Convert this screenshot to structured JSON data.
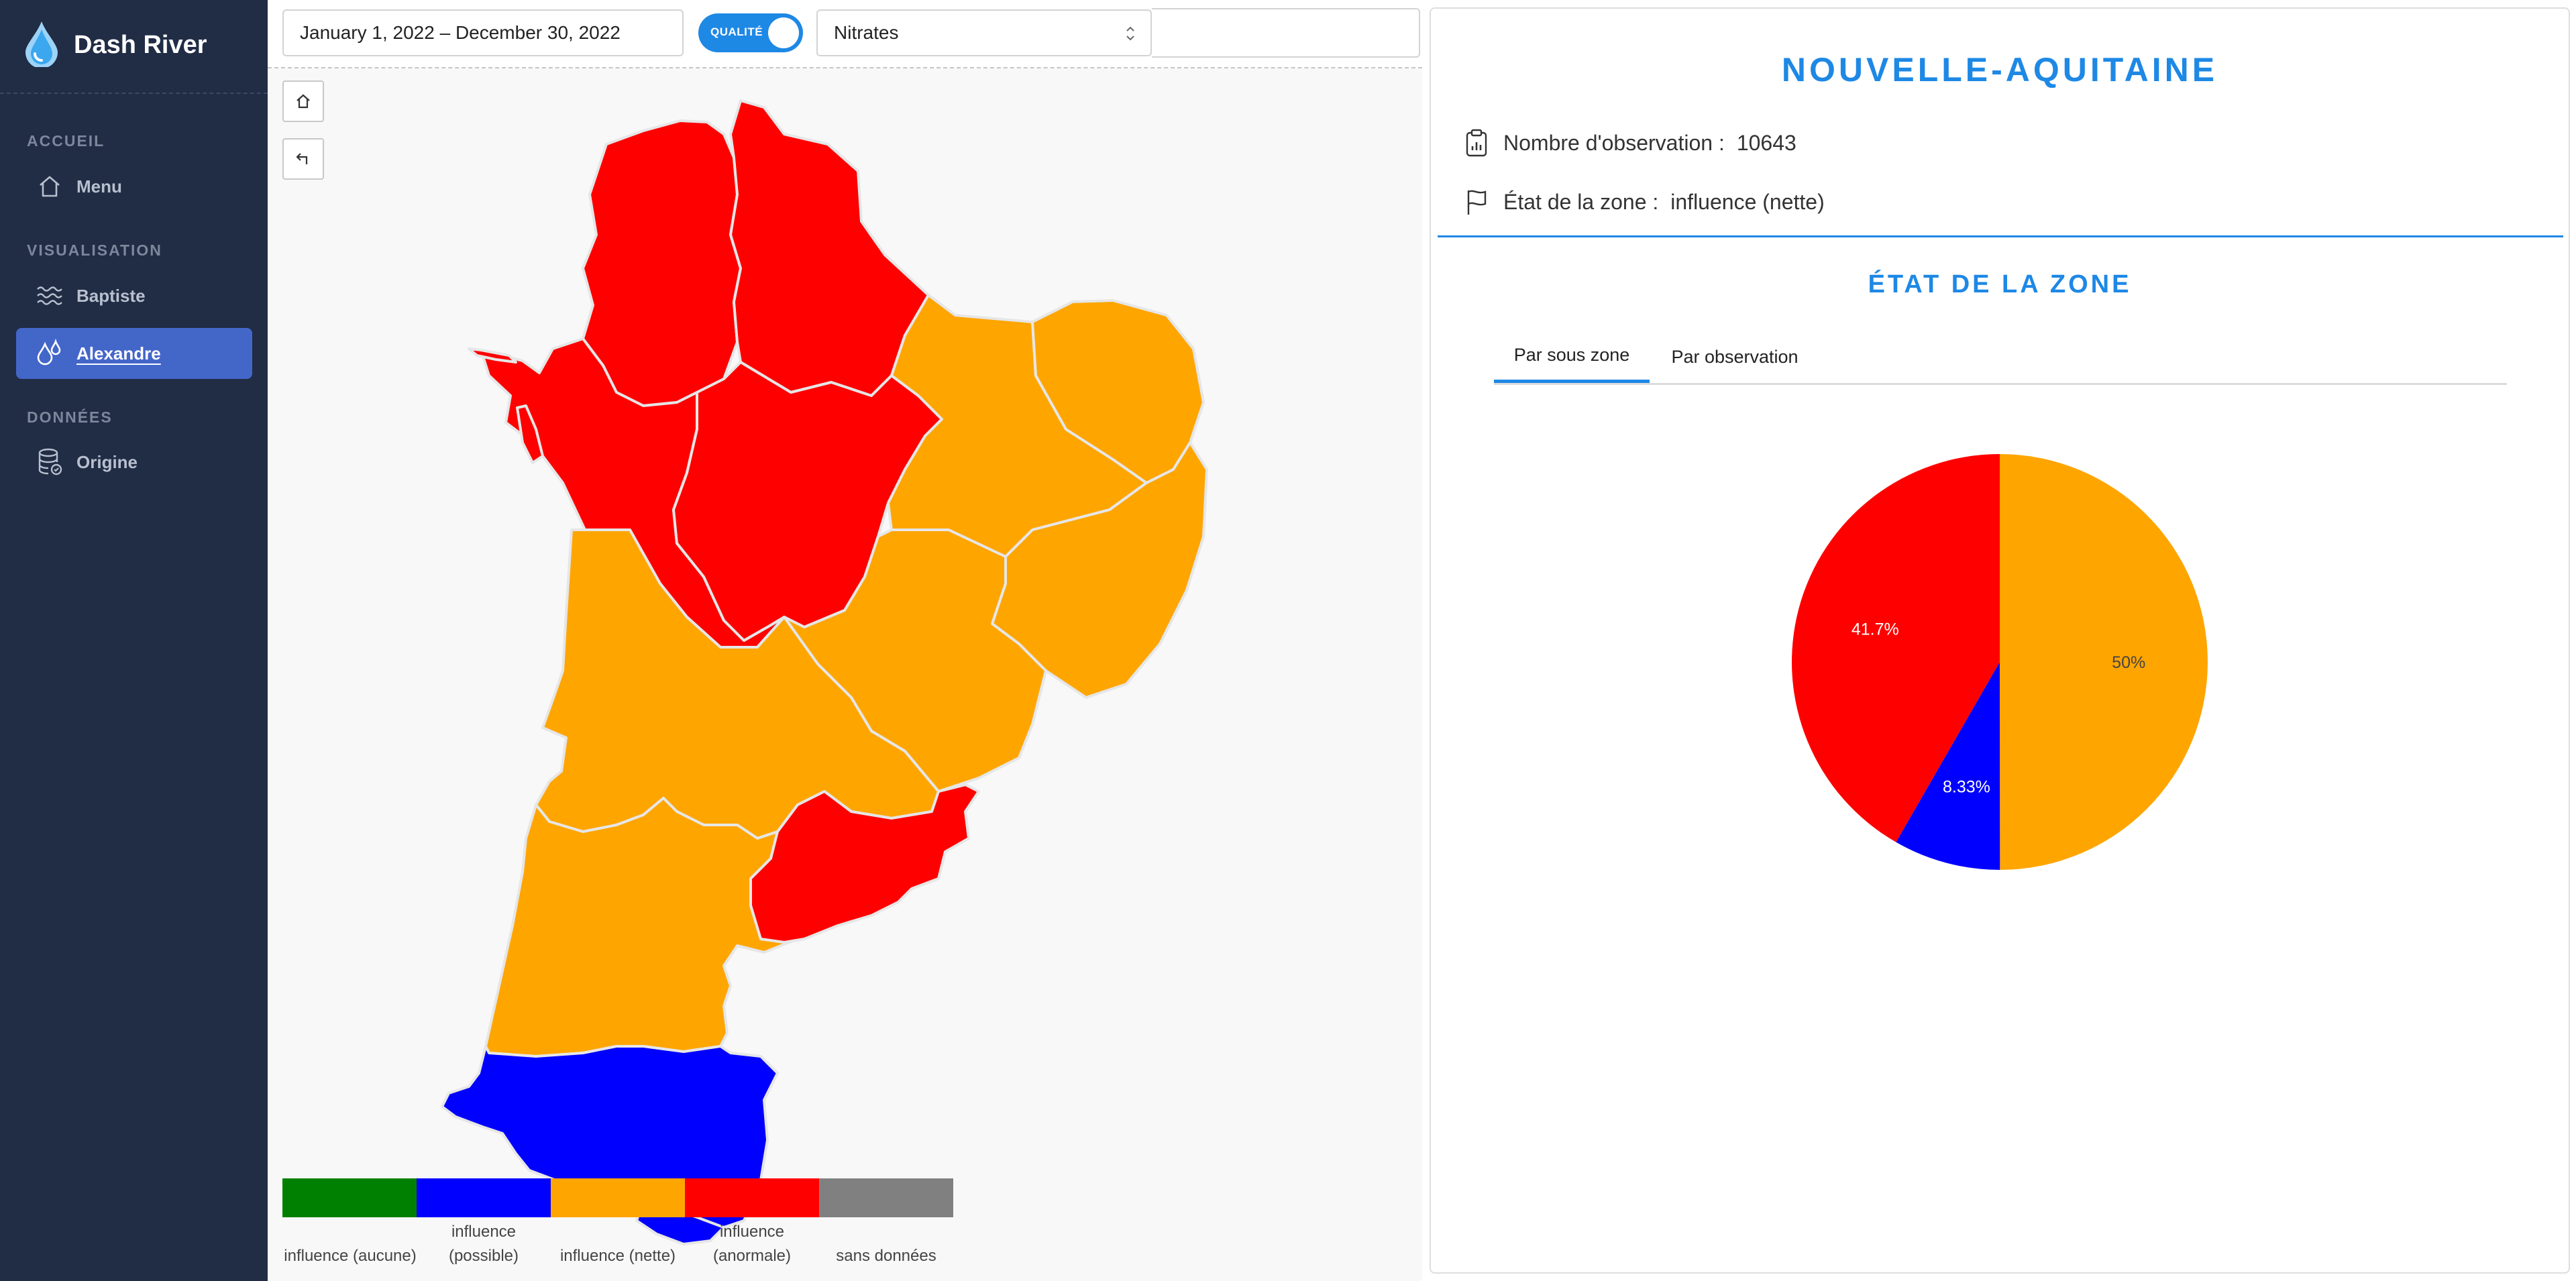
{
  "app": {
    "name": "Dash River",
    "accent": "#1e88e5",
    "sidebar_bg": "#212c45",
    "active_bg": "#4366c9"
  },
  "sidebar": {
    "sections": [
      {
        "title": "ACCUEIL",
        "items": [
          {
            "label": "Menu",
            "icon": "home-icon",
            "active": false
          }
        ]
      },
      {
        "title": "VISUALISATION",
        "items": [
          {
            "label": "Baptiste",
            "icon": "waves-icon",
            "active": false
          },
          {
            "label": "Alexandre",
            "icon": "droplets-icon",
            "active": true
          }
        ]
      },
      {
        "title": "DONNÉES",
        "items": [
          {
            "label": "Origine",
            "icon": "database-icon",
            "active": false
          }
        ]
      }
    ]
  },
  "toolbar": {
    "date_range": "January 1, 2022 – December 30, 2022",
    "toggle_label": "QUALITÉ",
    "toggle_on": true,
    "parameter": "Nitrates"
  },
  "map": {
    "buttons": [
      "home-icon",
      "back-arrow-icon"
    ],
    "legend": [
      {
        "label": "influence (aucune)",
        "color": "#008000"
      },
      {
        "label": "influence (possible)",
        "color": "#0000ff"
      },
      {
        "label": "influence (nette)",
        "color": "#ffa500"
      },
      {
        "label": "influence (anormale)",
        "color": "#ff0000"
      },
      {
        "label": "sans données",
        "color": "#808080"
      }
    ]
  },
  "panel": {
    "region": "NOUVELLE-AQUITAINE",
    "observations_label": "Nombre d'observation :",
    "observations_value": "10643",
    "state_label": "État de la zone :",
    "state_value": "influence (nette)",
    "section_title": "ÉTAT DE LA ZONE",
    "tabs": [
      {
        "label": "Par sous zone",
        "active": true
      },
      {
        "label": "Par observation",
        "active": false
      }
    ]
  },
  "chart_data": {
    "type": "pie",
    "title": "",
    "slices": [
      {
        "label": "influence (nette)",
        "value": 50,
        "text": "50%",
        "color": "#ffa500"
      },
      {
        "label": "influence (possible)",
        "value": 8.33,
        "text": "8.33%",
        "color": "#0000ff"
      },
      {
        "label": "influence (anormale)",
        "value": 41.7,
        "text": "41.7%",
        "color": "#ff0000"
      }
    ],
    "start_angle": "12 o'clock",
    "direction": "clockwise",
    "legend": "none"
  }
}
